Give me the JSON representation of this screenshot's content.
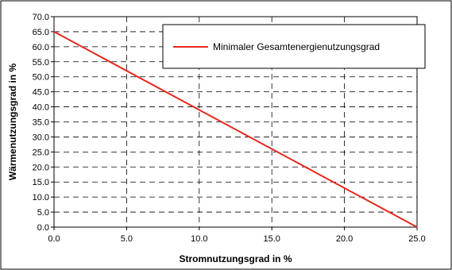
{
  "chart_data": {
    "type": "line",
    "title": "",
    "xlabel": "Stromnutzungsgrad in %",
    "ylabel": "Wärmenutzungsgrad in %",
    "xlim": [
      0,
      25
    ],
    "ylim": [
      0,
      70
    ],
    "x_ticks": [
      "0.0",
      "5.0",
      "10.0",
      "15.0",
      "20.0",
      "25.0"
    ],
    "y_ticks": [
      "0.0",
      "5.0",
      "10.0",
      "15.0",
      "20.0",
      "25.0",
      "30.0",
      "35.0",
      "40.0",
      "45.0",
      "50.0",
      "55.0",
      "60.0",
      "65.0",
      "70.0"
    ],
    "grid": true,
    "grid_style": "dashed",
    "legend_position": "top-right",
    "series": [
      {
        "name": "Minimaler Gesamtenergienutzungsgrad",
        "color": "#e8281e",
        "x": [
          0,
          25
        ],
        "y": [
          65,
          0
        ]
      }
    ]
  }
}
